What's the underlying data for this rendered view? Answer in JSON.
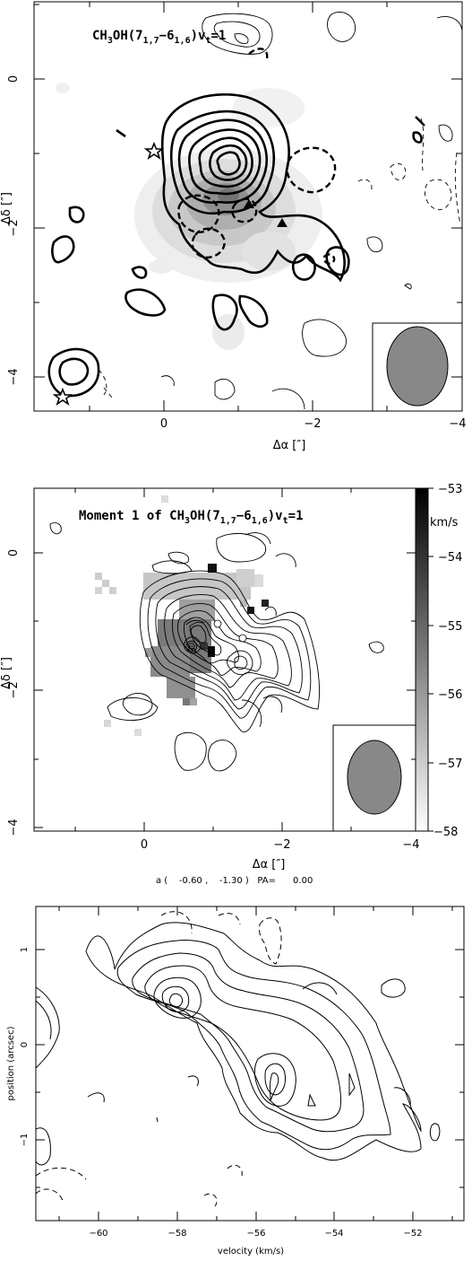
{
  "panels": {
    "p1": {
      "title_main": "CH",
      "title_sub1": "3",
      "title_mid": "OH(7",
      "title_sub2": "1,7",
      "title_mid2": "−6",
      "title_sub3": "1,6",
      "title_mid3": ")v",
      "title_sub4": "t",
      "title_end": "=1",
      "xlabel": "Δα [″]",
      "ylabel": "Δδ [″]"
    },
    "p2": {
      "title_main": "Moment 1 of CH",
      "title_sub1": "3",
      "title_mid": "OH(7",
      "title_sub2": "1,7",
      "title_mid2": "−6",
      "title_sub3": "1,6",
      "title_mid3": ")v",
      "title_sub4": "t",
      "title_end": "=1",
      "xlabel": "Δα [″]",
      "ylabel": "Δδ [″]",
      "colorbar_unit": "km/s",
      "caption": "a (    -0.60 ,    -1.30 )   PA=      0.00"
    },
    "p3": {
      "xlabel": "velocity (km/s)",
      "ylabel": "position (arcsec)"
    }
  },
  "chart_data": [
    {
      "type": "contour",
      "title": "CH3OH(7_{1,7}−6_{1,6})v_t=1",
      "xlabel": "Δα [″]",
      "ylabel": "Δδ [″]",
      "xlim": [
        1.5,
        -4
      ],
      "ylim": [
        -4.4,
        0.9
      ],
      "x_ticks": [
        0,
        -2,
        -4
      ],
      "y_ticks": [
        0,
        -2,
        -4
      ],
      "x_tick_labels": [
        "0",
        "−2",
        "−4"
      ],
      "y_tick_labels": [
        "0",
        "−2",
        "−4"
      ],
      "markers": [
        {
          "shape": "star",
          "x": 0.15,
          "y": -0.95
        },
        {
          "shape": "star",
          "x": 1.0,
          "y": -4.3
        },
        {
          "shape": "triangle",
          "x": -1.15,
          "y": -1.7
        },
        {
          "shape": "triangle",
          "x": -1.55,
          "y": -1.9
        }
      ],
      "beam_ellipse": {
        "x": -3.35,
        "y": -3.85,
        "major": 1.1,
        "minor": 0.75
      }
    },
    {
      "type": "heatmap",
      "title": "Moment 1 of CH3OH(7_{1,7}−6_{1,6})v_t=1",
      "xlabel": "Δα [″]",
      "ylabel": "Δδ [″]",
      "xlim": [
        1.5,
        -4
      ],
      "ylim": [
        -4.55,
        1.0
      ],
      "x_ticks": [
        0,
        -2,
        -4
      ],
      "y_ticks": [
        0,
        -2,
        -4
      ],
      "x_tick_labels": [
        "0",
        "−2",
        "−4"
      ],
      "y_tick_labels": [
        "0",
        "−2",
        "−4"
      ],
      "colorbar": {
        "min": -58,
        "max": -53,
        "ticks": [
          -53,
          -54,
          -55,
          -56,
          -57,
          -58
        ],
        "tick_labels": [
          "−53",
          "−54",
          "−55",
          "−56",
          "−57",
          "−58"
        ],
        "unit": "km/s"
      },
      "peak": {
        "x": -0.6,
        "y": -1.3
      },
      "beam_ellipse": {
        "x": -3.35,
        "y": -3.85,
        "major": 1.1,
        "minor": 0.75
      }
    },
    {
      "type": "contour",
      "title": "",
      "xlabel": "velocity (km/s)",
      "ylabel": "position (arcsec)",
      "xlim": [
        -61.6,
        -50.6
      ],
      "ylim": [
        -1.9,
        1.45
      ],
      "x_ticks": [
        -60,
        -58,
        -56,
        -54,
        -52
      ],
      "y_ticks": [
        1,
        0,
        -1
      ],
      "x_tick_labels": [
        "−60",
        "−58",
        "−56",
        "−54",
        "−52"
      ],
      "y_tick_labels": [
        "1",
        "0",
        "−1"
      ]
    }
  ]
}
